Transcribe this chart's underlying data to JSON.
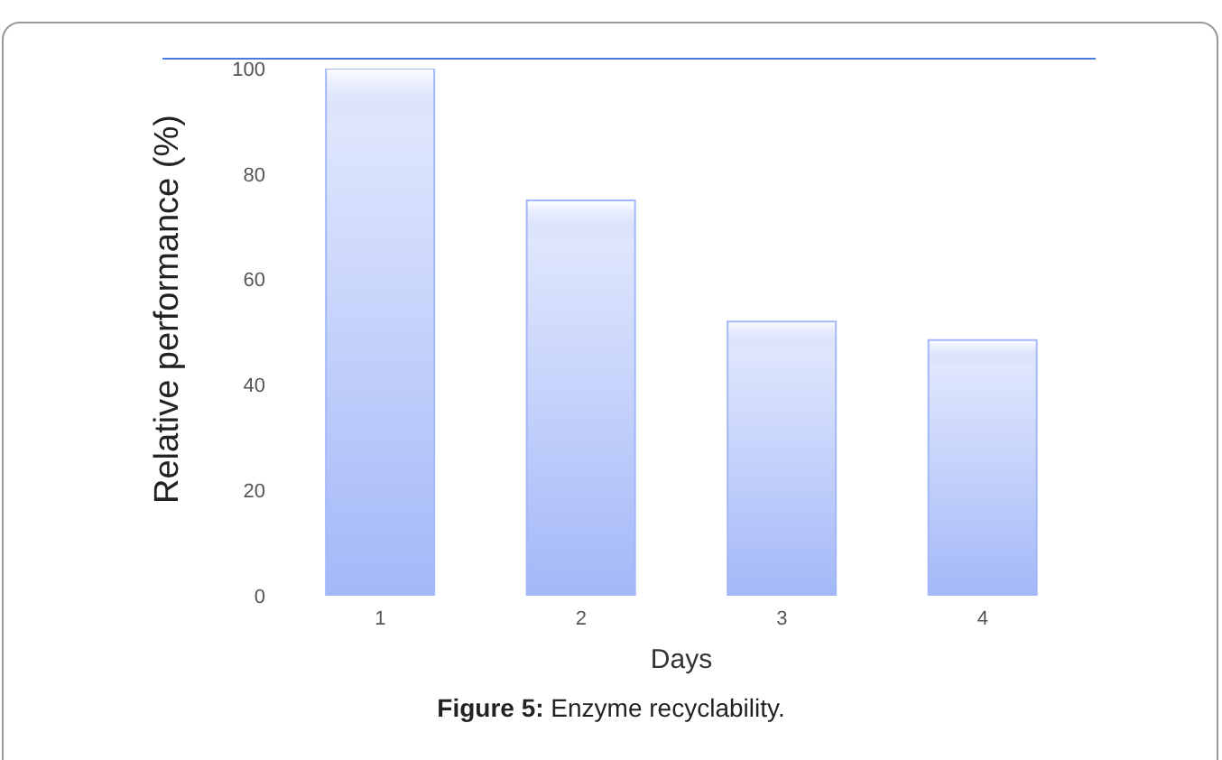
{
  "chart_data": {
    "type": "bar",
    "xlabel": "Days",
    "ylabel": "Relative performance (%)",
    "categories": [
      "1",
      "2",
      "3",
      "4"
    ],
    "values": [
      100,
      75,
      52,
      48.5
    ],
    "color": "#a3b8f8",
    "ylim": [
      0,
      100
    ],
    "yticks": [
      0,
      20,
      40,
      60,
      80,
      100
    ],
    "annotations": [
      "Figure 5: Enzyme recyclability."
    ]
  }
}
